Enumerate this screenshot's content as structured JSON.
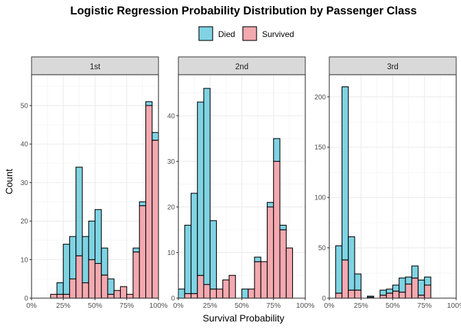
{
  "chart_data": {
    "type": "bar",
    "stacked": true,
    "title": "Logistic Regression Probability Distribution by Passenger Class",
    "xlabel": "Survival Probability",
    "ylabel": "Count",
    "legend": {
      "placement": "top",
      "entries": [
        {
          "name": "Died",
          "color": "#7fd3e3"
        },
        {
          "name": "Survived",
          "color": "#f4a9b0"
        }
      ]
    },
    "bin_width": 0.05,
    "bin_starts": [
      0,
      0.05,
      0.1,
      0.15,
      0.2,
      0.25,
      0.3,
      0.35,
      0.4,
      0.45,
      0.5,
      0.55,
      0.6,
      0.65,
      0.7,
      0.75,
      0.8,
      0.85,
      0.9,
      0.95
    ],
    "x_ticks": [
      0,
      0.25,
      0.5,
      0.75,
      1.0
    ],
    "x_tick_labels": [
      "0%",
      "25%",
      "50%",
      "75%",
      "100%"
    ],
    "xlim": [
      0,
      1
    ],
    "grid": true,
    "panels": [
      {
        "strip": "1st",
        "ylim": [
          0,
          58
        ],
        "y_ticks": [
          0,
          10,
          20,
          30,
          40,
          50
        ],
        "series": [
          {
            "name": "Survived",
            "values": [
              0,
              0,
              0,
              1,
              1,
              1,
              5,
              11,
              4,
              10,
              9,
              6,
              1,
              2,
              3,
              1,
              12,
              24,
              50,
              41
            ]
          },
          {
            "name": "Died",
            "values": [
              0,
              0,
              0,
              0,
              3,
              13,
              11,
              23,
              12,
              10,
              14,
              7,
              4,
              0,
              0,
              0,
              1,
              1,
              1,
              2
            ]
          }
        ]
      },
      {
        "strip": "2nd",
        "ylim": [
          0,
          49
        ],
        "y_ticks": [
          0,
          10,
          20,
          30,
          40
        ],
        "series": [
          {
            "name": "Survived",
            "values": [
              0,
              1,
              1,
              5,
              3,
              2,
              2,
              4,
              5,
              0,
              0,
              2,
              8,
              8,
              20,
              30,
              15,
              11,
              0,
              0
            ]
          },
          {
            "name": "Died",
            "values": [
              2,
              15,
              22,
              38,
              43,
              15,
              0,
              0,
              0,
              0,
              2,
              0,
              1,
              0,
              1,
              5,
              1,
              0,
              0,
              0
            ]
          }
        ]
      },
      {
        "strip": "3rd",
        "ylim": [
          0,
          222
        ],
        "y_ticks": [
          0,
          50,
          100,
          150,
          200
        ],
        "series": [
          {
            "name": "Survived",
            "values": [
              0,
              5,
              38,
              8,
              8,
              0,
              1,
              0,
              3,
              5,
              7,
              6,
              14,
              20,
              3,
              13,
              0,
              0,
              0,
              0
            ]
          },
          {
            "name": "Died",
            "values": [
              0,
              47,
              172,
              53,
              16,
              0,
              1,
              0,
              5,
              4,
              6,
              14,
              7,
              12,
              15,
              8,
              0,
              0,
              0,
              0
            ]
          }
        ]
      }
    ]
  }
}
